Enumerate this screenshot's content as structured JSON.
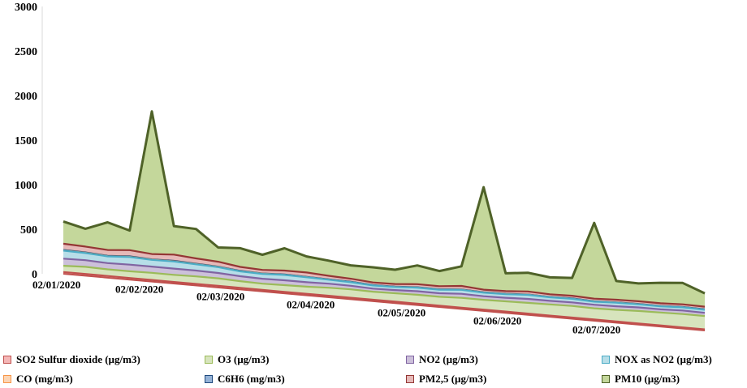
{
  "chart_data": {
    "type": "area",
    "title": "",
    "xlabel": "",
    "ylabel": "",
    "ylim": [
      0,
      3000
    ],
    "y_ticks": [
      "0",
      "500",
      "1000",
      "1500",
      "2000",
      "2500",
      "3000"
    ],
    "x_tick_labels": [
      "02/01/2020",
      "02/02/2020",
      "02/03/2020",
      "02/04/2020",
      "02/05/2020",
      "02/06/2020",
      "02/07/2020"
    ],
    "x_range": [
      "02/01/2020",
      "30/07/2020"
    ],
    "stacked": true,
    "perspective": "3d-tilted",
    "legend_position": "bottom",
    "series": [
      {
        "name": "SO2  Sulfur dioxide (µg/m3)",
        "color": "#f4b7b7",
        "edge": "#c0504d",
        "values": [
          20,
          20,
          19,
          19,
          19,
          18,
          18,
          18,
          18,
          17,
          17,
          17,
          17,
          16,
          16,
          16,
          16,
          15,
          15,
          15,
          15,
          14,
          14,
          14,
          14,
          14,
          13,
          13,
          13,
          13
        ]
      },
      {
        "name": "O3  (µg/m3)",
        "color": "#d7e4bd",
        "edge": "#9bbb59",
        "values": [
          70,
          80,
          75,
          75,
          80,
          80,
          85,
          85,
          75,
          70,
          75,
          80,
          90,
          95,
          90,
          95,
          100,
          100,
          110,
          110,
          115,
          120,
          125,
          130,
          125,
          130,
          140,
          145,
          150,
          150
        ]
      },
      {
        "name": "NO2  (µg/m3)",
        "color": "#ccc0da",
        "edge": "#8064a2",
        "values": [
          80,
          75,
          70,
          75,
          70,
          70,
          65,
          60,
          55,
          55,
          55,
          50,
          45,
          40,
          35,
          35,
          40,
          40,
          45,
          40,
          40,
          45,
          40,
          40,
          40,
          40,
          40,
          35,
          40,
          35
        ]
      },
      {
        "name": "NOX as NO2 (µg/m3)",
        "color": "#b7dee8",
        "edge": "#4bacc6",
        "values": [
          90,
          80,
          75,
          85,
          75,
          80,
          70,
          65,
          55,
          55,
          60,
          55,
          45,
          40,
          35,
          35,
          40,
          40,
          45,
          40,
          40,
          45,
          40,
          40,
          35,
          40,
          35,
          35,
          35,
          35
        ]
      },
      {
        "name": "CO (mg/m3)",
        "color": "#fcd5b4",
        "edge": "#f79646",
        "values": [
          2,
          2,
          2,
          2,
          2,
          2,
          2,
          2,
          1,
          1,
          1,
          1,
          1,
          1,
          1,
          1,
          1,
          1,
          1,
          1,
          1,
          1,
          1,
          1,
          1,
          1,
          1,
          1,
          1,
          1
        ]
      },
      {
        "name": "C6H6 (mg/m3)",
        "color": "#95b3d7",
        "edge": "#1f497d",
        "values": [
          5,
          5,
          5,
          5,
          4,
          5,
          4,
          4,
          4,
          3,
          3,
          3,
          3,
          3,
          3,
          3,
          3,
          3,
          3,
          3,
          3,
          3,
          3,
          3,
          3,
          3,
          3,
          3,
          3,
          3
        ]
      },
      {
        "name": "PM2,5 (µg/m3)",
        "color": "#e6b9b8",
        "edge": "#943634",
        "values": [
          70,
          65,
          65,
          70,
          60,
          70,
          60,
          55,
          45,
          40,
          45,
          50,
          40,
          35,
          30,
          30,
          35,
          35,
          40,
          30,
          30,
          35,
          30,
          30,
          30,
          30,
          30,
          30,
          30,
          30
        ]
      },
      {
        "name": "PM10 (µg/m3)",
        "color": "#c4d79b",
        "edge": "#4f6228",
        "values": [
          250,
          200,
          310,
          220,
          1600,
          320,
          330,
          160,
          210,
          170,
          250,
          180,
          170,
          150,
          170,
          160,
          210,
          170,
          220,
          1150,
          200,
          210,
          190,
          200,
          850,
          210,
          200,
          230,
          240,
          150
        ]
      }
    ]
  }
}
